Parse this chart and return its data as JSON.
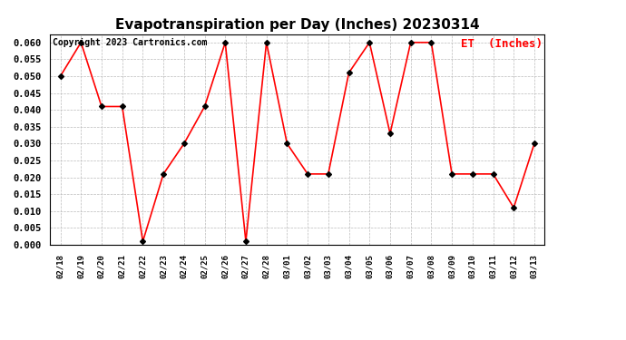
{
  "title": "Evapotranspiration per Day (Inches) 20230314",
  "copyright": "Copyright 2023 Cartronics.com",
  "legend_label": "ET  (Inches)",
  "dates": [
    "02/18",
    "02/19",
    "02/20",
    "02/21",
    "02/22",
    "02/23",
    "02/24",
    "02/25",
    "02/26",
    "02/27",
    "02/28",
    "03/01",
    "03/02",
    "03/03",
    "03/04",
    "03/05",
    "03/06",
    "03/07",
    "03/08",
    "03/09",
    "03/10",
    "03/11",
    "03/12",
    "03/13"
  ],
  "values": [
    0.05,
    0.06,
    0.041,
    0.041,
    0.001,
    0.021,
    0.03,
    0.041,
    0.06,
    0.001,
    0.06,
    0.03,
    0.021,
    0.021,
    0.051,
    0.06,
    0.033,
    0.06,
    0.06,
    0.021,
    0.021,
    0.021,
    0.011,
    0.03
  ],
  "line_color": "red",
  "marker_color": "black",
  "marker_style": "D",
  "marker_size": 3,
  "line_width": 1.2,
  "ylim": [
    0.0,
    0.0625
  ],
  "yticks": [
    0.0,
    0.005,
    0.01,
    0.015,
    0.02,
    0.025,
    0.03,
    0.035,
    0.04,
    0.045,
    0.05,
    0.055,
    0.06
  ],
  "background_color": "white",
  "grid_color": "#bbbbbb",
  "title_fontsize": 11,
  "legend_color": "red",
  "legend_fontsize": 9,
  "copyright_fontsize": 7,
  "xtick_fontsize": 6.5,
  "ytick_fontsize": 7.5
}
